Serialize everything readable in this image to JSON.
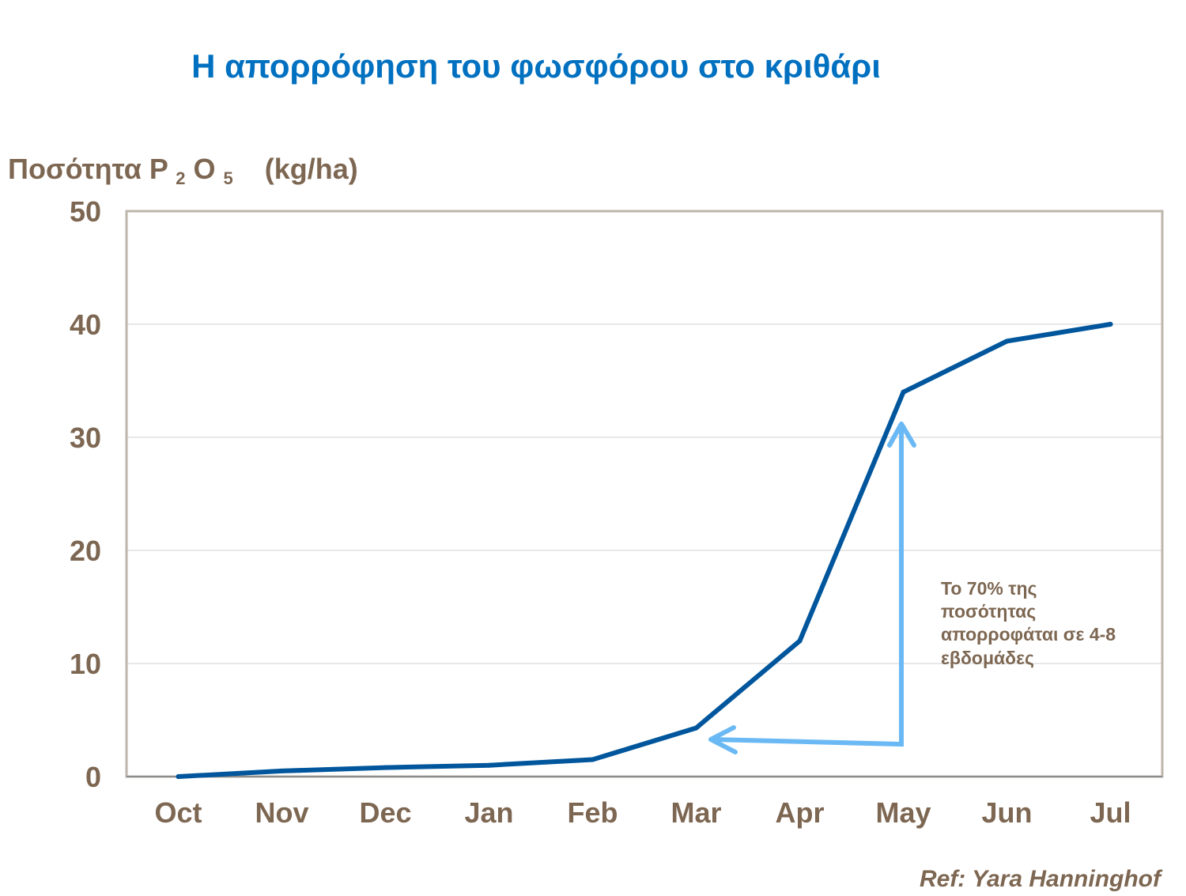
{
  "chart_data": {
    "type": "line",
    "title": "Η απορρόφηση του φωσφόρου στο κριθάρι",
    "ylabel": {
      "text": "Ποσότητα P",
      "sub1": "2",
      "mid": "O",
      "sub2": "5",
      "unit": "(kg/ha)"
    },
    "xlabel": "",
    "categories": [
      "Oct",
      "Nov",
      "Dec",
      "Jan",
      "Feb",
      "Mar",
      "Apr",
      "May",
      "Jun",
      "Jul"
    ],
    "values": [
      0,
      0.5,
      0.8,
      1.0,
      1.5,
      4.3,
      12,
      34,
      38.5,
      40
    ],
    "ylim": [
      0,
      50
    ],
    "yticks": [
      0,
      10,
      20,
      30,
      40,
      50
    ],
    "grid": true,
    "legend": "none",
    "annotation": {
      "lines": [
        "Το 70% της",
        "ποσότητας",
        "απορροφάται σε 4-8",
        "εβδομάδες"
      ]
    },
    "source": "Ref: Yara Hanninghof"
  },
  "colors": {
    "title": "#0070C0",
    "text": "#7D6752",
    "series_line": "#00569C",
    "annotation_arrow": "#6BB9F4",
    "grid": "#D9D9D9",
    "plot_border": "#BEB5AB"
  }
}
